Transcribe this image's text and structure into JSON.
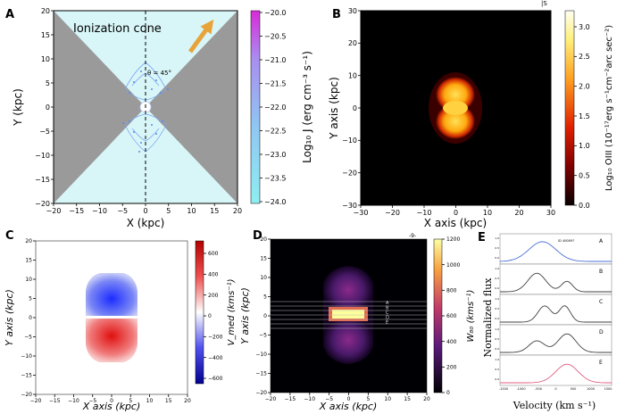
{
  "panels": {
    "A": {
      "letter": "A",
      "annotation": "Ionization cone",
      "angle_label": "θ = 45°",
      "xlabel": "X (kpc)",
      "ylabel": "Y (kpc)",
      "xticks": [
        "−20",
        "−15",
        "−10",
        "−5",
        "0",
        "5",
        "10",
        "15",
        "20"
      ],
      "yticks": [
        "20",
        "15",
        "10",
        "5",
        "0",
        "−5",
        "−10",
        "−15",
        "−20"
      ],
      "cbar_label": "Log₁₀ J (erg cm⁻³ s⁻¹)",
      "cbar_ticks": [
        "−20.0",
        "−20.5",
        "−21.0",
        "−21.5",
        "−22.0",
        "−22.5",
        "−23.0",
        "−23.5",
        "−24.0"
      ],
      "colors": {
        "cone": "#d8f6f8",
        "wedge": "#9a9a9a",
        "arrow": "#e8a33a",
        "cmap_top": "#d92ad9",
        "cmap_bottom": "#88ecf2"
      }
    },
    "B": {
      "letter": "B",
      "corner_text": "|S",
      "xlabel": "X axis (kpc)",
      "ylabel": "Y axis (kpc)",
      "xticks": [
        "−30",
        "−20",
        "−10",
        "0",
        "10",
        "20",
        "30"
      ],
      "yticks": [
        "30",
        "20",
        "10",
        "0",
        "−10",
        "−20",
        "−30"
      ],
      "cbar_label": "Log₁₀ OIII (10⁻¹⁷erg s⁻¹cm⁻²arc sec⁻²)",
      "cbar_ticks": [
        "3.0",
        "2.5",
        "2.0",
        "1.5",
        "1.0",
        "0.5",
        "0.0"
      ]
    },
    "C": {
      "letter": "C",
      "xlabel": "X axis (kpc)",
      "ylabel": "Y axis (kpc)",
      "xticks": [
        "−20",
        "−15",
        "−10",
        "−5",
        "0",
        "5",
        "10",
        "15",
        "20"
      ],
      "yticks": [
        "20",
        "15",
        "10",
        "5",
        "0",
        "−5",
        "−10",
        "−15",
        "−20"
      ],
      "cbar_label": "V_med (kms⁻¹)",
      "cbar_ticks": [
        "600",
        "400",
        "200",
        "0",
        "−200",
        "−400",
        "−600"
      ]
    },
    "D": {
      "letter": "D",
      "corner_text": "-9-",
      "xlabel": "X axis (kpc)",
      "ylabel": "Y axis (kpc)",
      "xticks": [
        "−20",
        "−15",
        "−10",
        "−5",
        "0",
        "5",
        "10",
        "15",
        "20"
      ],
      "yticks": [
        "20",
        "15",
        "10",
        "5",
        "0",
        "−5",
        "−10",
        "−15",
        "−20"
      ],
      "slit_labels": [
        "A",
        "B",
        "C",
        "D",
        "E"
      ],
      "cbar_label": "W₈₀ (kms⁻¹)",
      "cbar_ticks": [
        "1200",
        "1000",
        "800",
        "600",
        "400",
        "200",
        "0"
      ]
    },
    "E": {
      "letter": "E",
      "xlabel": "Velocity (km s⁻¹)",
      "ylabel": "Normalized flux",
      "sub_labels": [
        "A",
        "B",
        "C",
        "D",
        "E"
      ],
      "id_text": "ID 400897",
      "xticks": [
        "-1500",
        "-1000",
        "-500",
        "0",
        "500",
        "1000",
        "1500"
      ],
      "yticks": [
        "1.0",
        "0.5",
        "0.0"
      ]
    }
  }
}
